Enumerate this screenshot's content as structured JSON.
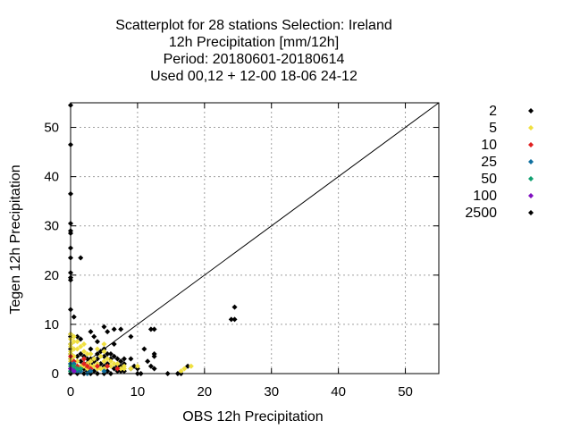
{
  "chart_data": {
    "type": "scatter",
    "title_lines": [
      "Scatterplot for   28 stations Selection: Ireland",
      "12h Precipitation [mm/12h]",
      "Period: 20180601-20180614",
      "Used  00,12  + 12-00 18-06 24-12"
    ],
    "xlabel": "OBS 12h Precipitation",
    "ylabel": "Tegen 12h Precipitation",
    "xlim": [
      0,
      55
    ],
    "ylim": [
      0,
      55
    ],
    "xticks": [
      0,
      10,
      20,
      30,
      40,
      50
    ],
    "yticks": [
      0,
      10,
      20,
      30,
      40,
      50
    ],
    "grid": true,
    "diagonal_line": true,
    "legend_position": "right, outside plot",
    "legend": [
      {
        "label": "2",
        "color": "#000000"
      },
      {
        "label": "5",
        "color": "#f0e040"
      },
      {
        "label": "10",
        "color": "#e02020"
      },
      {
        "label": "25",
        "color": "#1070a0"
      },
      {
        "label": "50",
        "color": "#10a070"
      },
      {
        "label": "100",
        "color": "#8010c0"
      },
      {
        "label": "2500",
        "color": "#000000"
      }
    ],
    "series": [
      {
        "legend_index": 0,
        "points": [
          [
            0,
            54.5
          ],
          [
            0,
            46.5
          ],
          [
            0,
            36.5
          ],
          [
            0,
            30.5
          ],
          [
            0,
            29
          ],
          [
            0,
            28.5
          ],
          [
            0,
            25.5
          ],
          [
            0,
            23.5
          ],
          [
            0,
            20.5
          ],
          [
            0,
            19.5
          ],
          [
            0,
            19
          ],
          [
            0,
            13
          ],
          [
            0.5,
            11.5
          ],
          [
            0,
            8
          ],
          [
            0,
            7.5
          ],
          [
            0,
            6
          ],
          [
            0,
            5
          ],
          [
            0,
            4
          ],
          [
            0,
            3
          ],
          [
            0,
            2
          ],
          [
            0,
            1
          ],
          [
            0,
            0.5
          ],
          [
            0,
            0
          ],
          [
            1.5,
            23.5
          ],
          [
            1,
            7.5
          ],
          [
            1.5,
            7
          ],
          [
            1.5,
            4
          ],
          [
            1,
            3.5
          ],
          [
            1.5,
            2.5
          ],
          [
            1,
            1.5
          ],
          [
            1,
            0.5
          ],
          [
            1,
            0
          ],
          [
            2,
            3.5
          ],
          [
            2,
            2
          ],
          [
            2,
            1
          ],
          [
            2,
            0
          ],
          [
            2.5,
            3
          ],
          [
            2.5,
            1.5
          ],
          [
            2.5,
            0.5
          ],
          [
            3,
            8.5
          ],
          [
            3,
            5
          ],
          [
            3,
            3
          ],
          [
            3,
            2
          ],
          [
            3,
            1
          ],
          [
            3,
            0
          ],
          [
            3.5,
            7.5
          ],
          [
            3.5,
            2.5
          ],
          [
            3.5,
            0.5
          ],
          [
            4,
            6.5
          ],
          [
            4,
            4
          ],
          [
            4,
            3
          ],
          [
            4,
            1.5
          ],
          [
            4,
            0
          ],
          [
            4.5,
            4.5
          ],
          [
            4.5,
            2
          ],
          [
            5,
            9.5
          ],
          [
            5,
            5
          ],
          [
            5,
            3.5
          ],
          [
            5,
            1.5
          ],
          [
            5,
            0
          ],
          [
            5.5,
            8.5
          ],
          [
            5.5,
            4
          ],
          [
            5.5,
            2
          ],
          [
            5.5,
            0.5
          ],
          [
            6,
            4
          ],
          [
            6,
            3
          ],
          [
            6,
            0
          ],
          [
            6.5,
            9
          ],
          [
            6.5,
            6
          ],
          [
            6.5,
            3.5
          ],
          [
            6.5,
            1
          ],
          [
            7,
            3
          ],
          [
            7,
            1.5
          ],
          [
            7,
            0.5
          ],
          [
            7.5,
            9
          ],
          [
            7.5,
            2.5
          ],
          [
            7.5,
            1.5
          ],
          [
            7.5,
            0.5
          ],
          [
            8,
            3
          ],
          [
            8,
            2
          ],
          [
            8,
            0.5
          ],
          [
            9,
            7.5
          ],
          [
            9,
            3
          ],
          [
            9,
            1
          ],
          [
            9.5,
            1.5
          ],
          [
            10,
            1
          ],
          [
            10,
            0
          ],
          [
            10.5,
            0
          ],
          [
            11,
            5
          ],
          [
            11.5,
            2.5
          ],
          [
            12,
            9
          ],
          [
            12,
            1.5
          ],
          [
            12.5,
            9
          ],
          [
            12.5,
            4
          ],
          [
            12.5,
            3.5
          ],
          [
            12.5,
            1
          ],
          [
            14.5,
            0
          ],
          [
            16,
            0
          ],
          [
            16.5,
            0
          ],
          [
            17.5,
            1.5
          ],
          [
            24,
            11
          ],
          [
            24.5,
            13.5
          ],
          [
            24.5,
            11
          ]
        ]
      },
      {
        "legend_index": 1,
        "points": [
          [
            0,
            8
          ],
          [
            0,
            7
          ],
          [
            0,
            6
          ],
          [
            0,
            5.5
          ],
          [
            0,
            4.5
          ],
          [
            0,
            4
          ],
          [
            0,
            3
          ],
          [
            0,
            2.5
          ],
          [
            0,
            1.5
          ],
          [
            0,
            1
          ],
          [
            0.5,
            7.5
          ],
          [
            0.5,
            6.5
          ],
          [
            0.5,
            5
          ],
          [
            0.5,
            3.5
          ],
          [
            0.5,
            2
          ],
          [
            0.5,
            1
          ],
          [
            1,
            6.5
          ],
          [
            1,
            5
          ],
          [
            1,
            2.5
          ],
          [
            1,
            1
          ],
          [
            1.5,
            5.5
          ],
          [
            1.5,
            1.5
          ],
          [
            2,
            6
          ],
          [
            2,
            4.5
          ],
          [
            2,
            3
          ],
          [
            2,
            1.5
          ],
          [
            2.5,
            4
          ],
          [
            2.5,
            2
          ],
          [
            2.5,
            1
          ],
          [
            3,
            4
          ],
          [
            3,
            2.5
          ],
          [
            3,
            1.5
          ],
          [
            3.5,
            3
          ],
          [
            3.5,
            1.5
          ],
          [
            4,
            5
          ],
          [
            4,
            2
          ],
          [
            4,
            1
          ],
          [
            4.5,
            3.5
          ],
          [
            4.5,
            1
          ],
          [
            5,
            6
          ],
          [
            5,
            4.5
          ],
          [
            5,
            2.5
          ],
          [
            5,
            1
          ],
          [
            5.5,
            3
          ],
          [
            5.5,
            1.5
          ],
          [
            6,
            2.5
          ],
          [
            6,
            1.5
          ],
          [
            6.5,
            2
          ],
          [
            7,
            2
          ],
          [
            7.5,
            1
          ],
          [
            8,
            1.5
          ],
          [
            8,
            1
          ],
          [
            9,
            1
          ],
          [
            10,
            1.5
          ],
          [
            16.5,
            0.5
          ],
          [
            17,
            1
          ],
          [
            18,
            1.5
          ]
        ]
      },
      {
        "legend_index": 2,
        "points": [
          [
            0,
            3.5
          ],
          [
            0.5,
            2.5
          ],
          [
            1,
            1.5
          ],
          [
            2,
            3
          ],
          [
            2,
            2
          ],
          [
            2.5,
            1.5
          ],
          [
            3,
            1
          ],
          [
            4,
            1.5
          ],
          [
            5.5,
            1.5
          ],
          [
            7,
            1
          ]
        ]
      },
      {
        "legend_index": 3,
        "points": [
          [
            0,
            2
          ],
          [
            0,
            1
          ],
          [
            0,
            0.5
          ],
          [
            0.5,
            2
          ],
          [
            0.5,
            1
          ],
          [
            0.5,
            0.5
          ],
          [
            1,
            0.5
          ],
          [
            1.5,
            0.5
          ],
          [
            2.5,
            0
          ],
          [
            3,
            0.5
          ],
          [
            5,
            0.5
          ]
        ]
      },
      {
        "legend_index": 4,
        "points": [
          [
            0,
            1.5
          ],
          [
            0,
            0.5
          ],
          [
            0.5,
            1.5
          ],
          [
            1,
            1
          ],
          [
            1.5,
            1
          ]
        ]
      },
      {
        "legend_index": 5,
        "points": [
          [
            0,
            1
          ],
          [
            0.5,
            0.5
          ]
        ]
      }
    ]
  }
}
